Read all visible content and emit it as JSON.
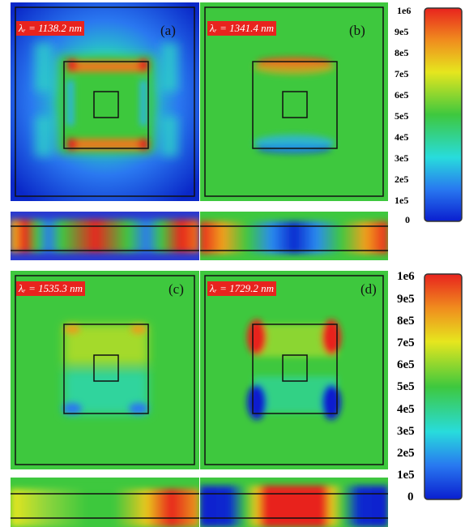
{
  "panels": [
    {
      "tag": "(a)",
      "wavelength": "λᵣ = 1138.2 nm"
    },
    {
      "tag": "(b)",
      "wavelength": "λᵣ = 1341.4 nm"
    },
    {
      "tag": "(c)",
      "wavelength": "λᵣ = 1535.3 nm"
    },
    {
      "tag": "(d)",
      "wavelength": "λᵣ = 1729.2 nm"
    }
  ],
  "colorbars": [
    {
      "ticks": [
        "1e6",
        "9e5",
        "8e5",
        "7e5",
        "6e5",
        "5e5",
        "4e5",
        "3e5",
        "2e5",
        "1e5",
        "0"
      ]
    },
    {
      "ticks": [
        "1e6",
        "9e5",
        "8e5",
        "7e5",
        "6e5",
        "5e5",
        "4e5",
        "3e5",
        "2e5",
        "1e5",
        "0"
      ]
    }
  ],
  "colors": {
    "background_field": "#3ec83e",
    "low": "#0a1ecf",
    "high": "#e8231e",
    "label_bg": "#e8231e"
  }
}
